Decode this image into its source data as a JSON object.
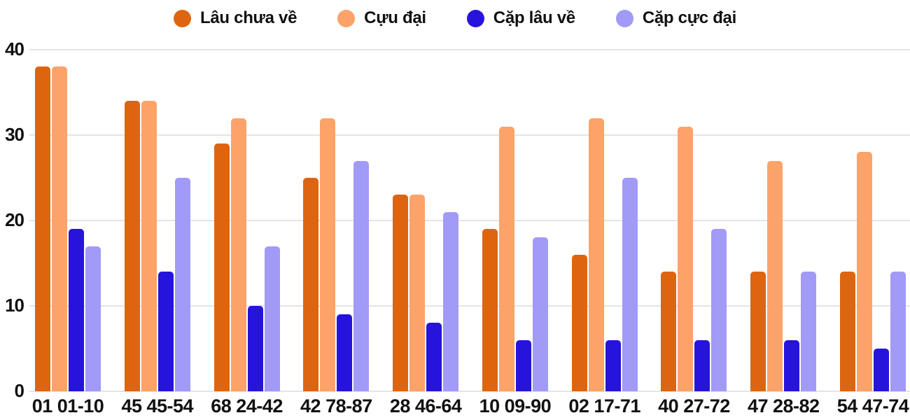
{
  "chart_data": {
    "type": "bar",
    "title": "",
    "xlabel": "",
    "ylabel": "",
    "categories": [
      "01 01-10",
      "45 45-54",
      "68 24-42",
      "42 78-87",
      "28 46-64",
      "10 09-90",
      "02 17-71",
      "40 27-72",
      "47 28-82",
      "54 47-74"
    ],
    "series": [
      {
        "name": "Lâu chưa về",
        "color": "#DE650F",
        "values": [
          38,
          34,
          29,
          25,
          23,
          19,
          16,
          14,
          14,
          14
        ]
      },
      {
        "name": "Cựu đại",
        "color": "#FCA369",
        "values": [
          38,
          34,
          32,
          32,
          23,
          31,
          32,
          31,
          27,
          28
        ]
      },
      {
        "name": "Cặp lâu về",
        "color": "#2614DC",
        "values": [
          19,
          14,
          10,
          9,
          8,
          6,
          6,
          6,
          6,
          5
        ]
      },
      {
        "name": "Cặp cực đại",
        "color": "#A29AF7",
        "values": [
          17,
          25,
          17,
          27,
          21,
          18,
          25,
          19,
          14,
          14
        ]
      }
    ],
    "yticks": [
      0,
      10,
      20,
      30,
      40
    ],
    "ylim": [
      0,
      40
    ],
    "grid": true,
    "legend_position": "top",
    "colors": {
      "grid": "#e4e4e4",
      "text": "#111111",
      "background": "#ffffff"
    }
  }
}
